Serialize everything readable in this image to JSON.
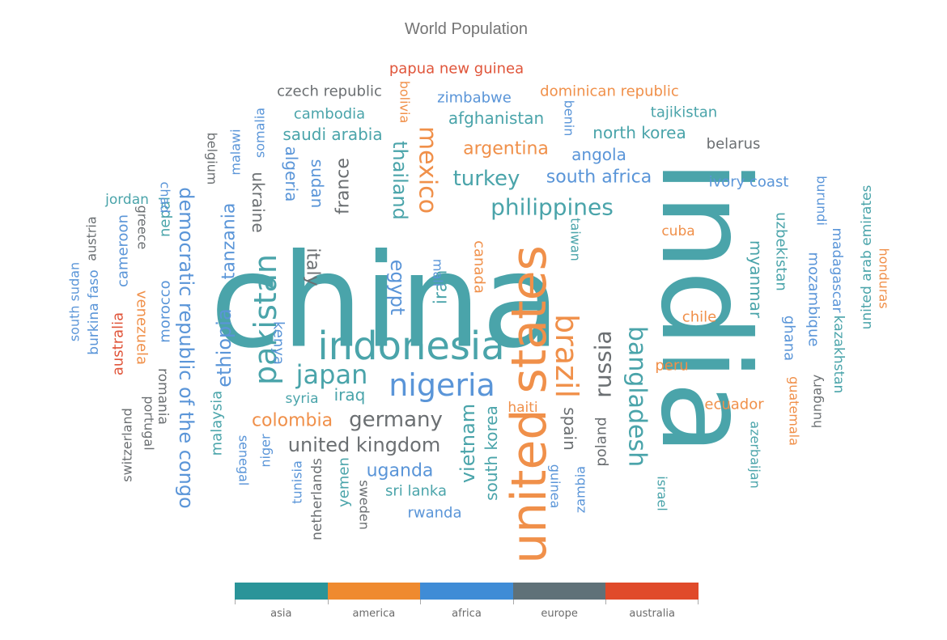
{
  "chart_data": {
    "type": "wordcloud",
    "title": "World Population",
    "legend": {
      "placement": "bottom",
      "items": [
        {
          "name": "asia",
          "color": "#2a9499"
        },
        {
          "name": "america",
          "color": "#ef8a2f"
        },
        {
          "name": "africa",
          "color": "#3f8cd6"
        },
        {
          "name": "europe",
          "color": "#5f7178"
        },
        {
          "name": "australia",
          "color": "#e04a2a"
        }
      ]
    },
    "words": [
      {
        "text": "china",
        "category": "asia"
      },
      {
        "text": "india",
        "category": "asia"
      },
      {
        "text": "united states",
        "category": "america"
      },
      {
        "text": "indonesia",
        "category": "asia"
      },
      {
        "text": "nigeria",
        "category": "africa"
      },
      {
        "text": "pakistan",
        "category": "asia"
      },
      {
        "text": "brazil",
        "category": "america"
      },
      {
        "text": "bangladesh",
        "category": "asia"
      },
      {
        "text": "russia",
        "category": "europe"
      },
      {
        "text": "mexico",
        "category": "america"
      },
      {
        "text": "japan",
        "category": "asia"
      },
      {
        "text": "ethiopia",
        "category": "africa"
      },
      {
        "text": "philippines",
        "category": "asia"
      },
      {
        "text": "egypt",
        "category": "africa"
      },
      {
        "text": "vietnam",
        "category": "asia"
      },
      {
        "text": "democratic republic of the congo",
        "category": "africa"
      },
      {
        "text": "turkey",
        "category": "asia"
      },
      {
        "text": "iran",
        "category": "asia"
      },
      {
        "text": "germany",
        "category": "europe"
      },
      {
        "text": "thailand",
        "category": "asia"
      },
      {
        "text": "united kingdom",
        "category": "europe"
      },
      {
        "text": "france",
        "category": "europe"
      },
      {
        "text": "italy",
        "category": "europe"
      },
      {
        "text": "tanzania",
        "category": "africa"
      },
      {
        "text": "south africa",
        "category": "africa"
      },
      {
        "text": "myanmar",
        "category": "asia"
      },
      {
        "text": "kenya",
        "category": "africa"
      },
      {
        "text": "south korea",
        "category": "asia"
      },
      {
        "text": "colombia",
        "category": "america"
      },
      {
        "text": "spain",
        "category": "europe"
      },
      {
        "text": "uganda",
        "category": "africa"
      },
      {
        "text": "argentina",
        "category": "america"
      },
      {
        "text": "algeria",
        "category": "africa"
      },
      {
        "text": "sudan",
        "category": "africa"
      },
      {
        "text": "ukraine",
        "category": "europe"
      },
      {
        "text": "iraq",
        "category": "asia"
      },
      {
        "text": "afghanistan",
        "category": "asia"
      },
      {
        "text": "poland",
        "category": "europe"
      },
      {
        "text": "canada",
        "category": "america"
      },
      {
        "text": "morocco",
        "category": "africa"
      },
      {
        "text": "saudi arabia",
        "category": "asia"
      },
      {
        "text": "uzbekistan",
        "category": "asia"
      },
      {
        "text": "peru",
        "category": "america"
      },
      {
        "text": "angola",
        "category": "africa"
      },
      {
        "text": "malaysia",
        "category": "asia"
      },
      {
        "text": "mozambique",
        "category": "africa"
      },
      {
        "text": "ghana",
        "category": "africa"
      },
      {
        "text": "yemen",
        "category": "asia"
      },
      {
        "text": "nepal",
        "category": "asia"
      },
      {
        "text": "venezuela",
        "category": "america"
      },
      {
        "text": "madagascar",
        "category": "africa"
      },
      {
        "text": "cameroon",
        "category": "africa"
      },
      {
        "text": "ivory coast",
        "category": "africa"
      },
      {
        "text": "north korea",
        "category": "asia"
      },
      {
        "text": "australia",
        "category": "australia"
      },
      {
        "text": "niger",
        "category": "africa"
      },
      {
        "text": "taiwan",
        "category": "asia"
      },
      {
        "text": "sri lanka",
        "category": "asia"
      },
      {
        "text": "burkina faso",
        "category": "africa"
      },
      {
        "text": "mali",
        "category": "africa"
      },
      {
        "text": "romania",
        "category": "europe"
      },
      {
        "text": "malawi",
        "category": "africa"
      },
      {
        "text": "chile",
        "category": "america"
      },
      {
        "text": "kazakhstan",
        "category": "asia"
      },
      {
        "text": "zambia",
        "category": "africa"
      },
      {
        "text": "guatemala",
        "category": "america"
      },
      {
        "text": "ecuador",
        "category": "america"
      },
      {
        "text": "syria",
        "category": "asia"
      },
      {
        "text": "netherlands",
        "category": "europe"
      },
      {
        "text": "senegal",
        "category": "africa"
      },
      {
        "text": "cambodia",
        "category": "asia"
      },
      {
        "text": "chad",
        "category": "africa"
      },
      {
        "text": "somalia",
        "category": "africa"
      },
      {
        "text": "zimbabwe",
        "category": "africa"
      },
      {
        "text": "guinea",
        "category": "africa"
      },
      {
        "text": "rwanda",
        "category": "africa"
      },
      {
        "text": "benin",
        "category": "africa"
      },
      {
        "text": "burundi",
        "category": "africa"
      },
      {
        "text": "tunisia",
        "category": "africa"
      },
      {
        "text": "bolivia",
        "category": "america"
      },
      {
        "text": "belgium",
        "category": "europe"
      },
      {
        "text": "haiti",
        "category": "america"
      },
      {
        "text": "cuba",
        "category": "america"
      },
      {
        "text": "south sudan",
        "category": "africa"
      },
      {
        "text": "dominican republic",
        "category": "america"
      },
      {
        "text": "czech republic",
        "category": "europe"
      },
      {
        "text": "greece",
        "category": "europe"
      },
      {
        "text": "jordan",
        "category": "asia"
      },
      {
        "text": "portugal",
        "category": "europe"
      },
      {
        "text": "azerbaijan",
        "category": "asia"
      },
      {
        "text": "sweden",
        "category": "europe"
      },
      {
        "text": "honduras",
        "category": "america"
      },
      {
        "text": "united arab emirates",
        "category": "asia"
      },
      {
        "text": "hungary",
        "category": "europe"
      },
      {
        "text": "tajikistan",
        "category": "asia"
      },
      {
        "text": "belarus",
        "category": "europe"
      },
      {
        "text": "austria",
        "category": "europe"
      },
      {
        "text": "papua new guinea",
        "category": "australia"
      },
      {
        "text": "israel",
        "category": "asia"
      },
      {
        "text": "switzerland",
        "category": "europe"
      }
    ]
  }
}
